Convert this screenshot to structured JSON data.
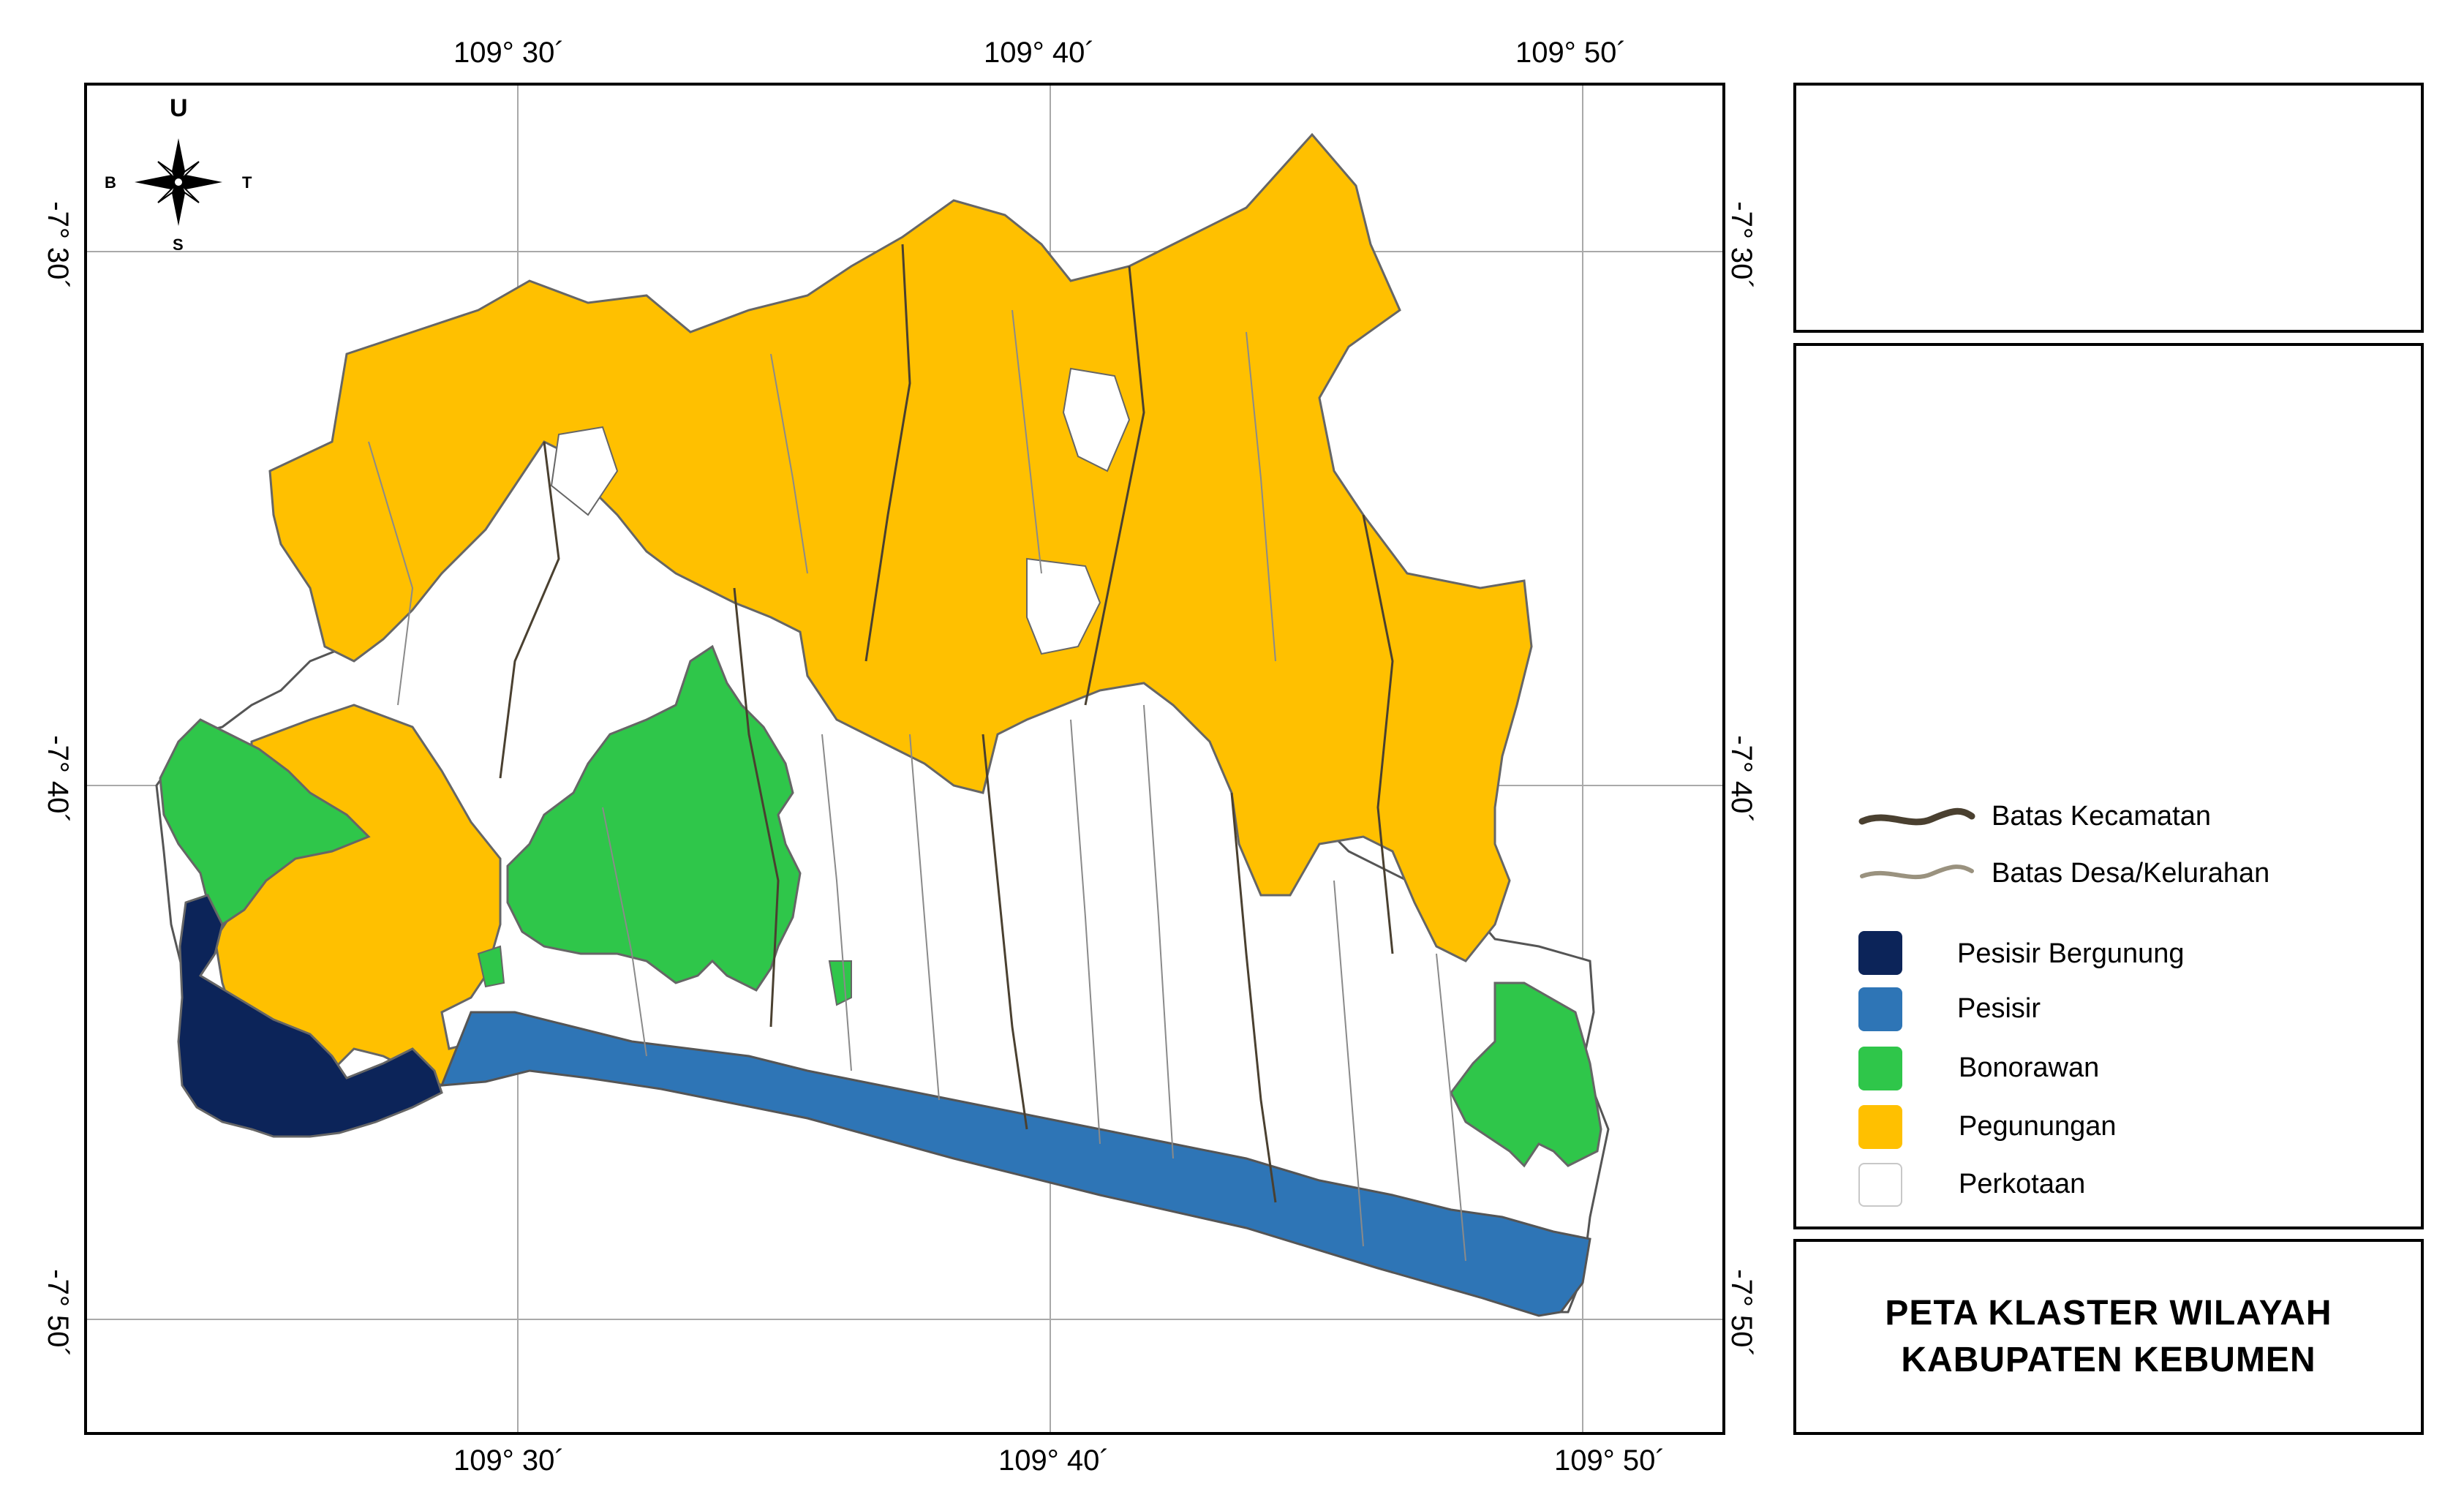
{
  "map": {
    "coords_top": [
      "109° 30´",
      "109° 40´",
      "109° 50´"
    ],
    "coords_bottom": [
      "109° 30´",
      "109° 40´",
      "109° 50´"
    ],
    "coords_left": [
      "-7° 30´",
      "-7° 40´",
      "-7° 50´"
    ],
    "coords_right": [
      "-7° 30´",
      "-7° 40´",
      "-7° 50´"
    ],
    "compass": {
      "north": "U",
      "south": "S",
      "west": "B",
      "east": "T"
    },
    "colors": {
      "pesisir_bergunung": "#0c2459",
      "pesisir": "#2e75b6",
      "bonorawan": "#2fc64a",
      "pegunungan": "#ffc000",
      "perkotaan": "#ffffff"
    }
  },
  "legend": {
    "lines": [
      {
        "label": "Batas Kecamatan",
        "color": "#4a4030"
      },
      {
        "label": "Batas Desa/Kelurahan",
        "color": "#9a927f"
      }
    ],
    "classes": [
      {
        "label": "Pesisir Bergunung",
        "color": "#0c2459"
      },
      {
        "label": "Pesisir",
        "color": "#2e75b6"
      },
      {
        "label": "Bonorawan",
        "color": "#2fc64a"
      },
      {
        "label": "Pegunungan",
        "color": "#ffc000"
      },
      {
        "label": "Perkotaan",
        "color": "#ffffff"
      }
    ]
  },
  "caption": {
    "line1": "PETA KLASTER WILAYAH",
    "line2": "KABUPATEN KEBUMEN"
  }
}
